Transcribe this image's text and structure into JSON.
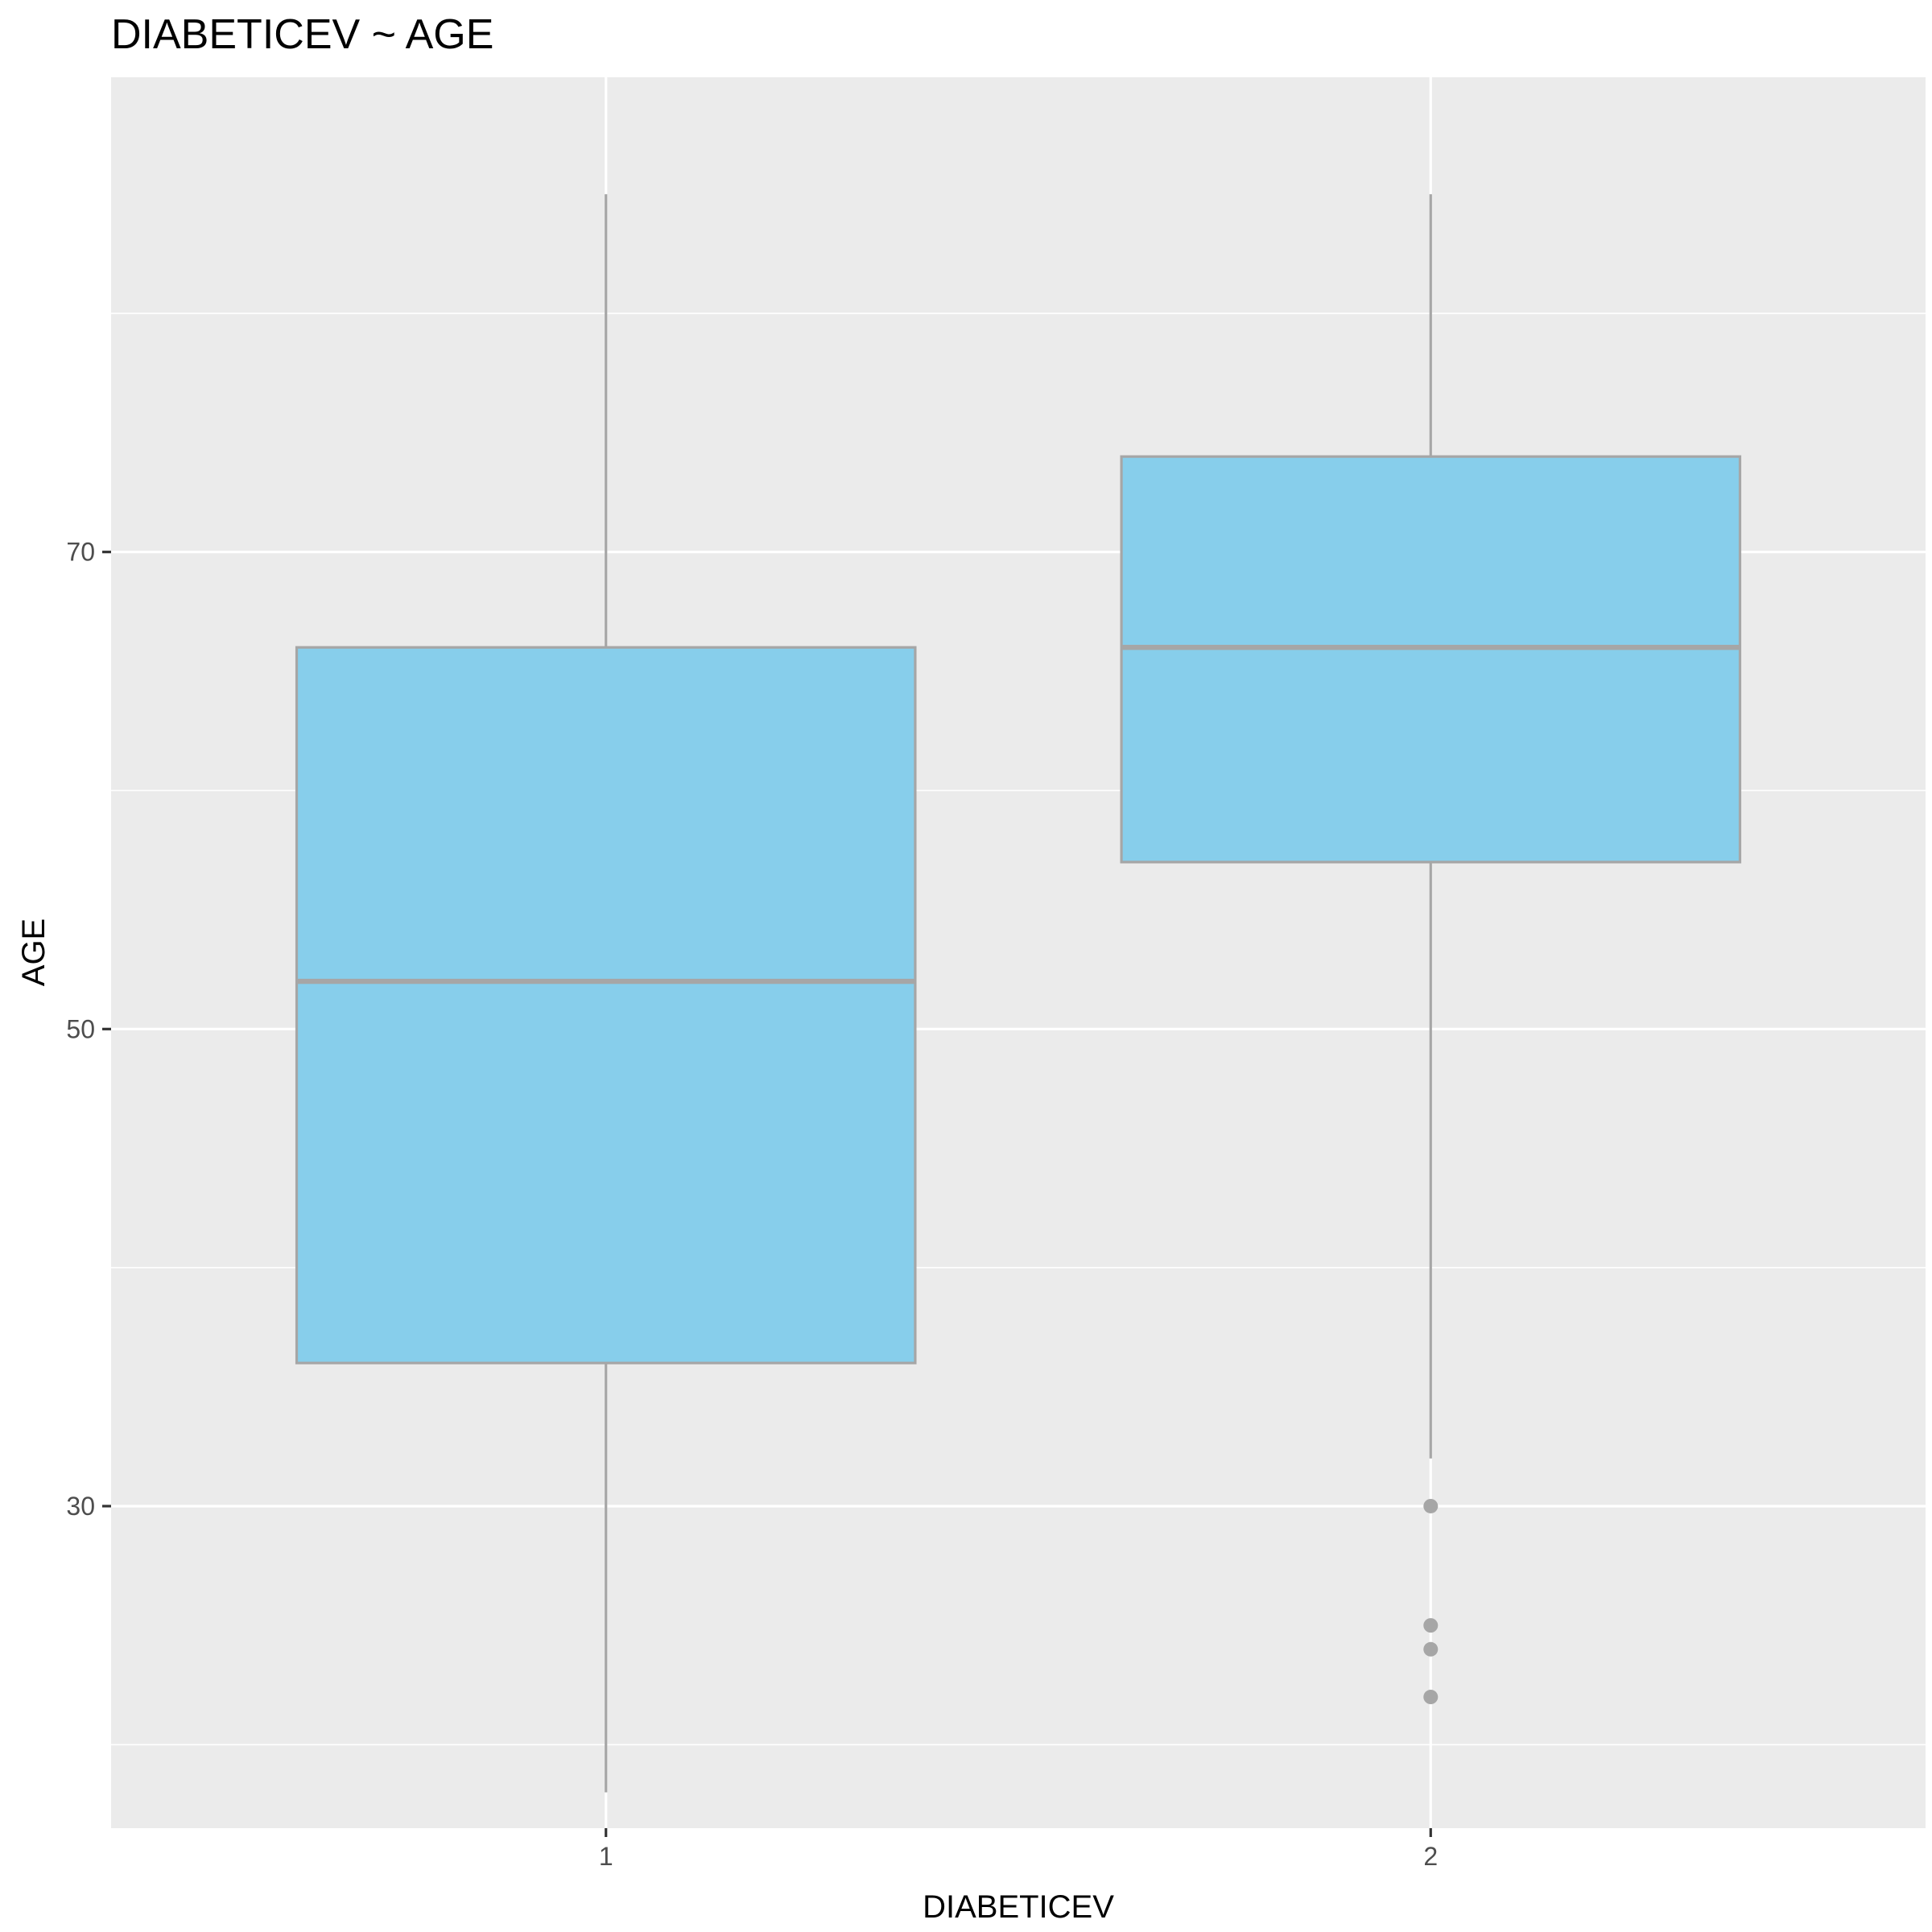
{
  "chart_data": {
    "type": "boxplot",
    "title": "DIABETICEV ~ AGE",
    "xlabel": "DIABETICEV",
    "ylabel": "AGE",
    "categories": [
      "1",
      "2"
    ],
    "ylim": [
      16.5,
      89.9
    ],
    "yticks": [
      30,
      50,
      70
    ],
    "grid": true,
    "boxes": [
      {
        "category": "1",
        "whisker_low": 18,
        "q1": 36,
        "median": 52,
        "q3": 66,
        "whisker_high": 85,
        "outliers": []
      },
      {
        "category": "2",
        "whisker_low": 32,
        "q1": 57,
        "median": 66,
        "q3": 74,
        "whisker_high": 85,
        "outliers": [
          30,
          25,
          24,
          22
        ]
      }
    ],
    "colors": {
      "panel": "#ebebeb",
      "grid": "#ffffff",
      "box_fill": "#87ceeb",
      "box_line": "#a6a6a6",
      "outlier": "#a6a6a6"
    }
  }
}
